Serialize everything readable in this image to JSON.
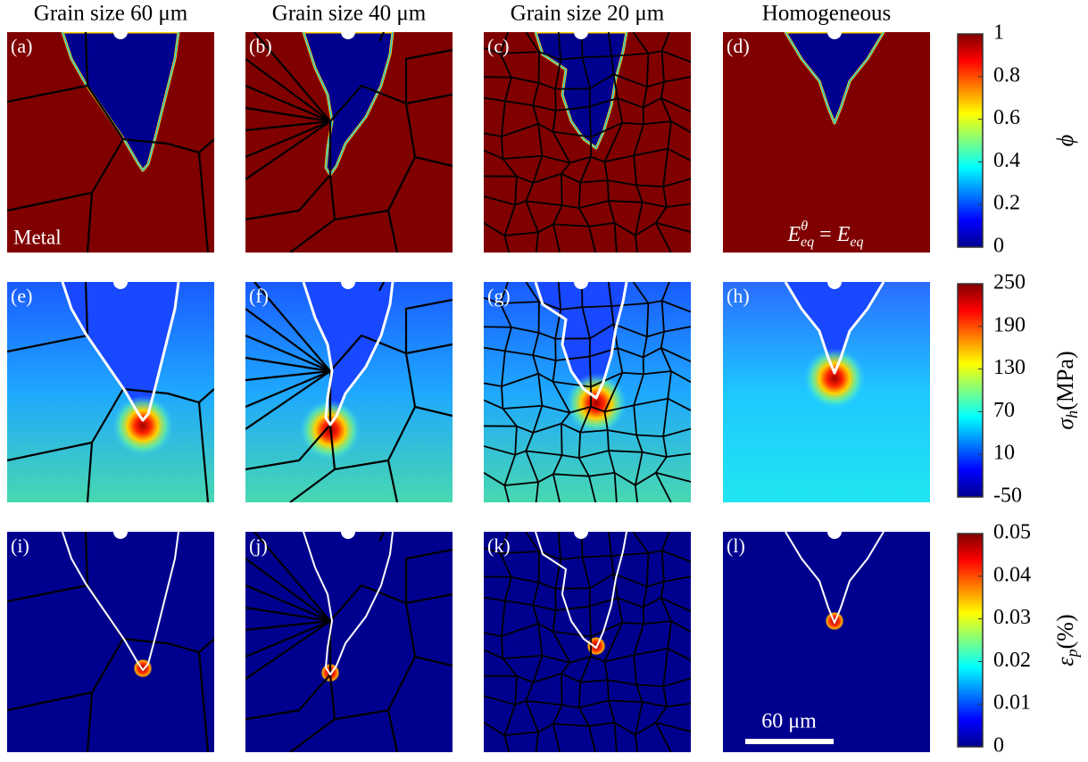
{
  "columns": [
    "Grain size 60 μm",
    "Grain size 40 μm",
    "Grain size 20 μm",
    "Homogeneous"
  ],
  "panels": [
    "(a)",
    "(b)",
    "(c)",
    "(d)",
    "(e)",
    "(f)",
    "(g)",
    "(h)",
    "(i)",
    "(j)",
    "(k)",
    "(l)"
  ],
  "annotations": {
    "material": "Metal",
    "equality": {
      "lhs": "E",
      "lhs_sup": "θ",
      "lhs_sub": "eq",
      "op": " = ",
      "rhs": "E",
      "rhs_sub": "eq"
    },
    "scale_bar": "60 μm"
  },
  "colorbars": [
    {
      "symbol": "ϕ",
      "ticks": [
        "1",
        "0.8",
        "0.6",
        "0.4",
        "0.2",
        "0"
      ]
    },
    {
      "symbol": "σ",
      "subscript": "h",
      "unit": "(MPa)",
      "ticks": [
        "250",
        "190",
        "130",
        "70",
        "10",
        "-50"
      ]
    },
    {
      "symbol": "ε",
      "subscript": "p",
      "unit": "(%)",
      "ticks": [
        "0.05",
        "0.04",
        "0.03",
        "0.02",
        "0.01",
        "0"
      ]
    }
  ]
}
